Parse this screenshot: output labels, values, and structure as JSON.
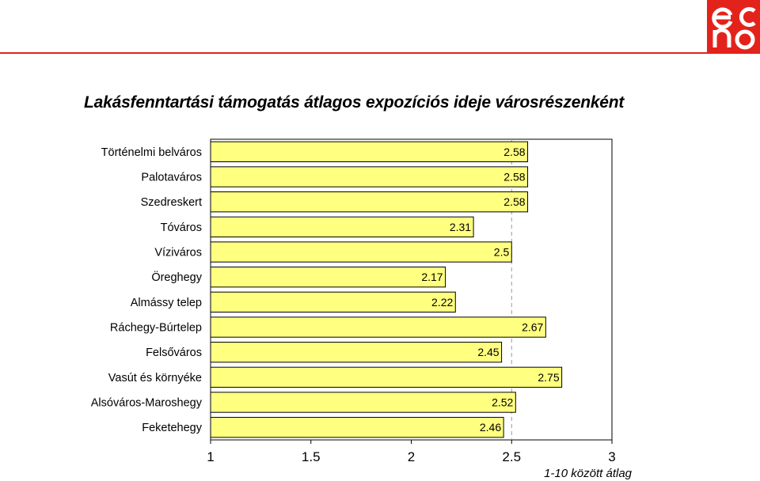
{
  "title": "Lakásfenntartási támogatás átlagos expozíciós ideje városrészenként",
  "logo": {
    "name": "echo-logo",
    "color": "#e3231b"
  },
  "chart_data": {
    "type": "bar",
    "orientation": "horizontal",
    "categories": [
      "Történelmi belváros",
      "Palotaváros",
      "Szedreskert",
      "Tóváros",
      "Víziváros",
      "Öreghegy",
      "Almássy telep",
      "Ráchegy-Búrtelep",
      "Felsőváros",
      "Vasút és környéke",
      "Alsóváros-Maroshegy",
      "Feketehegy"
    ],
    "values": [
      2.58,
      2.58,
      2.58,
      2.31,
      2.5,
      2.17,
      2.22,
      2.67,
      2.45,
      2.75,
      2.52,
      2.46
    ],
    "data_labels": [
      "2.58",
      "2.58",
      "2.58",
      "2.31",
      "2.5",
      "2.17",
      "2.22",
      "2.67",
      "2.45",
      "2.75",
      "2.52",
      "2.46"
    ],
    "xlim": [
      1,
      3
    ],
    "xticks": [
      "1",
      "1.5",
      "2",
      "2.5",
      "3"
    ],
    "xlabel": "1-10 között átlag",
    "reference_line": 2.5,
    "bar_color": "#ffff80",
    "bar_stroke": "#000000"
  }
}
